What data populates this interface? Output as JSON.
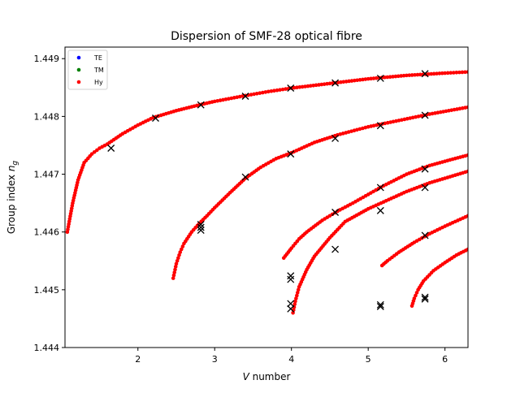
{
  "chart_data": {
    "type": "scatter",
    "title": "Dispersion of SMF-28 optical fibre",
    "xlabel_italic": "V",
    "xlabel_rest": " number",
    "ylabel_main": "Group index ",
    "ylabel_italic": "n",
    "ylabel_sub": "g",
    "xlim": [
      1.05,
      6.3
    ],
    "ylim": [
      1.444,
      1.4492
    ],
    "x_ticks": [
      2,
      3,
      4,
      5,
      6
    ],
    "y_ticks": [
      1.444,
      1.445,
      1.446,
      1.447,
      1.448,
      1.449
    ],
    "grid": false,
    "legend": {
      "placement": "top-left",
      "entries": [
        {
          "label": "TE",
          "color": "#0000ff"
        },
        {
          "label": "TM",
          "color": "#008000"
        },
        {
          "label": "Hy",
          "color": "#ff0000"
        }
      ]
    },
    "series": [
      {
        "name": "TE",
        "color": "#0000ff",
        "curves": []
      },
      {
        "name": "TM",
        "color": "#008000",
        "curves": []
      },
      {
        "name": "Hy",
        "color": "#ff0000",
        "curves": [
          {
            "points": [
              [
                1.08,
                1.446
              ],
              [
                1.15,
                1.4465
              ],
              [
                1.22,
                1.4469
              ],
              [
                1.3,
                1.4472
              ],
              [
                1.4,
                1.44735
              ],
              [
                1.5,
                1.44745
              ],
              [
                1.6,
                1.44752
              ],
              [
                1.8,
                1.4477
              ],
              [
                2.0,
                1.44785
              ],
              [
                2.2,
                1.44798
              ],
              [
                2.5,
                1.4481
              ],
              [
                2.8,
                1.4482
              ],
              [
                3.0,
                1.44826
              ],
              [
                3.4,
                1.44836
              ],
              [
                3.7,
                1.44843
              ],
              [
                4.0,
                1.44849
              ],
              [
                4.5,
                1.44857
              ],
              [
                5.0,
                1.44865
              ],
              [
                5.5,
                1.44871
              ],
              [
                6.0,
                1.44875
              ],
              [
                6.3,
                1.44877
              ]
            ]
          },
          {
            "points": [
              [
                2.46,
                1.4452
              ],
              [
                2.5,
                1.44545
              ],
              [
                2.55,
                1.44565
              ],
              [
                2.6,
                1.4458
              ],
              [
                2.7,
                1.446
              ],
              [
                2.8,
                1.44615
              ],
              [
                2.9,
                1.44628
              ],
              [
                3.0,
                1.44642
              ],
              [
                3.2,
                1.44668
              ],
              [
                3.4,
                1.44693
              ],
              [
                3.6,
                1.44712
              ],
              [
                3.8,
                1.44727
              ],
              [
                4.0,
                1.44737
              ],
              [
                4.3,
                1.44755
              ],
              [
                4.6,
                1.44768
              ],
              [
                5.0,
                1.44782
              ],
              [
                5.4,
                1.44793
              ],
              [
                5.8,
                1.44804
              ],
              [
                6.3,
                1.44816
              ]
            ]
          },
          {
            "points": [
              [
                3.9,
                1.44555
              ],
              [
                4.0,
                1.44572
              ],
              [
                4.1,
                1.44588
              ],
              [
                4.2,
                1.446
              ],
              [
                4.4,
                1.4462
              ],
              [
                4.6,
                1.44636
              ],
              [
                4.8,
                1.4465
              ],
              [
                5.0,
                1.44665
              ],
              [
                5.2,
                1.4468
              ],
              [
                5.5,
                1.447
              ],
              [
                5.8,
                1.44715
              ],
              [
                6.1,
                1.44726
              ],
              [
                6.3,
                1.44733
              ]
            ]
          },
          {
            "points": [
              [
                4.02,
                1.4446
              ],
              [
                4.05,
                1.4448
              ],
              [
                4.1,
                1.44505
              ],
              [
                4.2,
                1.44535
              ],
              [
                4.3,
                1.44558
              ],
              [
                4.5,
                1.4459
              ],
              [
                4.7,
                1.44618
              ],
              [
                5.0,
                1.4464
              ],
              [
                5.2,
                1.44652
              ],
              [
                5.5,
                1.4467
              ],
              [
                5.8,
                1.44685
              ],
              [
                6.1,
                1.44697
              ],
              [
                6.3,
                1.44705
              ]
            ]
          },
          {
            "points": [
              [
                5.18,
                1.44542
              ],
              [
                5.25,
                1.4455
              ],
              [
                5.4,
                1.44565
              ],
              [
                5.6,
                1.44582
              ],
              [
                5.8,
                1.44597
              ],
              [
                6.0,
                1.4461
              ],
              [
                6.2,
                1.44622
              ],
              [
                6.3,
                1.44628
              ]
            ]
          },
          {
            "points": [
              [
                5.57,
                1.44472
              ],
              [
                5.6,
                1.44485
              ],
              [
                5.65,
                1.445
              ],
              [
                5.72,
                1.44515
              ],
              [
                5.85,
                1.44533
              ],
              [
                6.0,
                1.44547
              ],
              [
                6.15,
                1.4456
              ],
              [
                6.3,
                1.4457
              ]
            ]
          }
        ]
      }
    ],
    "markers": {
      "symbol": "x",
      "color": "#000000",
      "points": [
        [
          1.65,
          1.44745
        ],
        [
          2.23,
          1.44797
        ],
        [
          2.82,
          1.4482
        ],
        [
          3.4,
          1.44835
        ],
        [
          3.99,
          1.44849
        ],
        [
          4.57,
          1.44858
        ],
        [
          5.16,
          1.44866
        ],
        [
          5.74,
          1.44874
        ],
        [
          3.4,
          1.44695
        ],
        [
          3.99,
          1.44735
        ],
        [
          4.57,
          1.44762
        ],
        [
          5.16,
          1.44784
        ],
        [
          5.74,
          1.44802
        ],
        [
          2.82,
          1.44613
        ],
        [
          2.82,
          1.44608
        ],
        [
          2.82,
          1.44603
        ],
        [
          4.57,
          1.44634
        ],
        [
          5.16,
          1.44677
        ],
        [
          5.74,
          1.44709
        ],
        [
          5.16,
          1.44637
        ],
        [
          5.74,
          1.44677
        ],
        [
          3.99,
          1.44524
        ],
        [
          3.99,
          1.44518
        ],
        [
          4.57,
          1.4457
        ],
        [
          5.74,
          1.44594
        ],
        [
          3.99,
          1.44476
        ],
        [
          3.99,
          1.44467
        ],
        [
          5.16,
          1.44474
        ],
        [
          5.16,
          1.44471
        ],
        [
          5.74,
          1.44487
        ],
        [
          5.74,
          1.44484
        ]
      ]
    }
  }
}
